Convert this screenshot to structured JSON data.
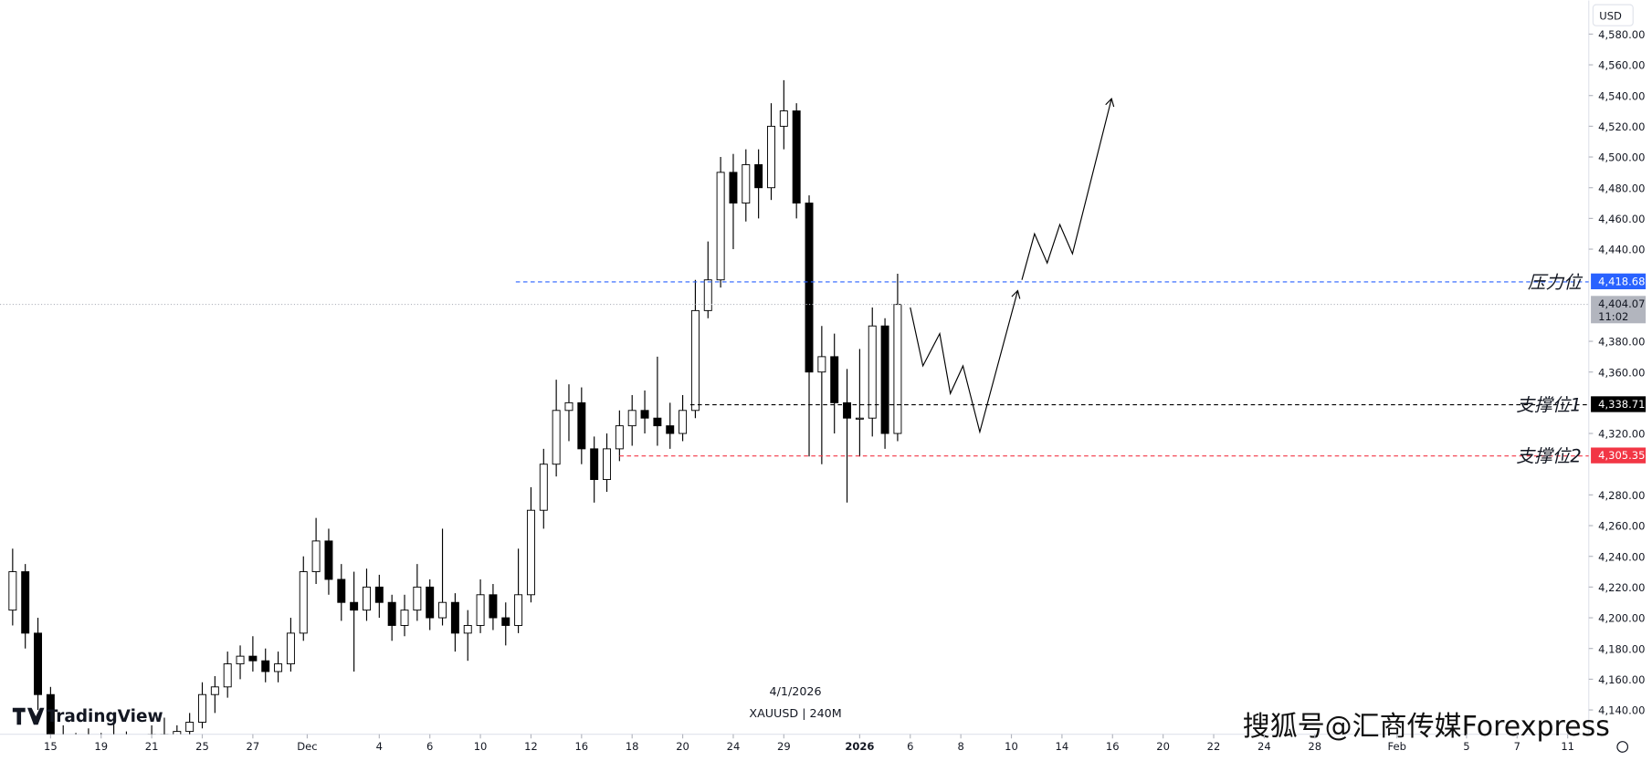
{
  "chart_data": {
    "type": "candlestick",
    "logo": "TradingView",
    "date_label": "4/1/2026",
    "symbol": "XAUUSD | 240M",
    "currency": "USD",
    "watermark": "搜狐号@汇商传媒Forexpress",
    "x": [
      -3,
      -2,
      -1,
      0,
      1,
      2,
      3,
      4,
      5,
      6,
      7,
      8,
      9,
      10,
      11,
      12,
      13,
      14,
      15,
      16,
      17,
      18,
      19,
      20,
      21,
      22,
      23,
      24,
      25,
      26,
      27,
      28,
      29,
      30,
      31,
      32,
      33,
      34,
      35,
      36,
      37,
      38,
      39,
      40,
      41,
      42,
      43,
      44,
      45,
      46,
      47,
      48,
      49,
      50,
      51,
      52,
      53,
      54,
      55,
      56,
      57,
      58,
      59,
      60,
      61,
      62,
      63,
      64,
      65,
      66,
      67
    ],
    "open": [
      4205,
      4230,
      4190,
      4150,
      4120,
      4110,
      4118,
      4112,
      4120,
      4115,
      4108,
      4116,
      4124,
      4118,
      4126,
      4132,
      4150,
      4155,
      4170,
      4175,
      4172,
      4165,
      4170,
      4190,
      4230,
      4250,
      4225,
      4210,
      4205,
      4220,
      4210,
      4195,
      4205,
      4220,
      4200,
      4210,
      4190,
      4195,
      4215,
      4200,
      4195,
      4215,
      4270,
      4300,
      4335,
      4340,
      4310,
      4290,
      4310,
      4325,
      4335,
      4330,
      4325,
      4320,
      4335,
      4400,
      4420,
      4490,
      4470,
      4495,
      4480,
      4520,
      4530,
      4470,
      4360,
      4370,
      4340,
      4330,
      4330,
      4390,
      4320
    ],
    "high": [
      4245,
      4235,
      4200,
      4155,
      4130,
      4125,
      4128,
      4125,
      4132,
      4126,
      4122,
      4130,
      4135,
      4130,
      4138,
      4158,
      4162,
      4178,
      4182,
      4188,
      4180,
      4178,
      4200,
      4240,
      4265,
      4258,
      4235,
      4230,
      4232,
      4228,
      4215,
      4215,
      4235,
      4225,
      4258,
      4216,
      4205,
      4225,
      4222,
      4210,
      4245,
      4285,
      4310,
      4355,
      4352,
      4350,
      4318,
      4320,
      4335,
      4345,
      4348,
      4370,
      4340,
      4345,
      4420,
      4445,
      4500,
      4502,
      4505,
      4505,
      4535,
      4550,
      4535,
      4475,
      4390,
      4385,
      4362,
      4375,
      4402,
      4395,
      4424
    ],
    "low": [
      4195,
      4180,
      4140,
      4110,
      4100,
      4095,
      4105,
      4098,
      4108,
      4100,
      4095,
      4104,
      4110,
      4105,
      4115,
      4128,
      4138,
      4148,
      4160,
      4165,
      4158,
      4158,
      4165,
      4185,
      4222,
      4215,
      4198,
      4165,
      4198,
      4200,
      4185,
      4188,
      4198,
      4192,
      4195,
      4178,
      4172,
      4190,
      4192,
      4182,
      4190,
      4210,
      4258,
      4292,
      4315,
      4300,
      4275,
      4282,
      4302,
      4312,
      4320,
      4312,
      4310,
      4315,
      4330,
      4395,
      4415,
      4440,
      4458,
      4460,
      4472,
      4505,
      4460,
      4305,
      4300,
      4320,
      4275,
      4305,
      4318,
      4310,
      4315
    ],
    "close": [
      4230,
      4190,
      4150,
      4120,
      4110,
      4118,
      4112,
      4120,
      4115,
      4108,
      4116,
      4124,
      4118,
      4126,
      4132,
      4150,
      4155,
      4170,
      4175,
      4172,
      4165,
      4170,
      4190,
      4230,
      4250,
      4225,
      4210,
      4205,
      4220,
      4210,
      4195,
      4205,
      4220,
      4200,
      4210,
      4190,
      4195,
      4215,
      4200,
      4195,
      4215,
      4270,
      4300,
      4335,
      4340,
      4310,
      4290,
      4310,
      4325,
      4335,
      4330,
      4325,
      4320,
      4335,
      4400,
      4420,
      4490,
      4470,
      4495,
      4480,
      4520,
      4530,
      4470,
      4360,
      4370,
      4340,
      4330,
      4330,
      4390,
      4320,
      4404
    ],
    "up_color": "#ffffff",
    "down_color": "#000000",
    "outline_color": "#000000",
    "xlim": [
      -4,
      121.67
    ],
    "xticks": [
      {
        "value": 0,
        "label": "15"
      },
      {
        "value": 4,
        "label": "19"
      },
      {
        "value": 8,
        "label": "21"
      },
      {
        "value": 12,
        "label": "25"
      },
      {
        "value": 16,
        "label": "27"
      },
      {
        "value": 20.3,
        "label": "Dec"
      },
      {
        "value": 26,
        "label": "4"
      },
      {
        "value": 30,
        "label": "6"
      },
      {
        "value": 34,
        "label": "10"
      },
      {
        "value": 38,
        "label": "12"
      },
      {
        "value": 42,
        "label": "16"
      },
      {
        "value": 46,
        "label": "18"
      },
      {
        "value": 50,
        "label": "20"
      },
      {
        "value": 54,
        "label": "24"
      },
      {
        "value": 58,
        "label": "29"
      },
      {
        "value": 64,
        "label": "2026",
        "bold": true
      },
      {
        "value": 68,
        "label": "6"
      },
      {
        "value": 72,
        "label": "8"
      },
      {
        "value": 76,
        "label": "10"
      },
      {
        "value": 80,
        "label": "14"
      },
      {
        "value": 84,
        "label": "16"
      },
      {
        "value": 88,
        "label": "20"
      },
      {
        "value": 92,
        "label": "22"
      },
      {
        "value": 96,
        "label": "24"
      },
      {
        "value": 100,
        "label": "28"
      },
      {
        "value": 106.5,
        "label": "Feb"
      },
      {
        "value": 112,
        "label": "5"
      },
      {
        "value": 116,
        "label": "7"
      },
      {
        "value": 120,
        "label": "11"
      }
    ],
    "ylim": [
      4124.2,
      4601.9
    ],
    "yticks": [
      {
        "value": 4140,
        "label": "4,140.00"
      },
      {
        "value": 4160,
        "label": "4,160.00"
      },
      {
        "value": 4180,
        "label": "4,180.00"
      },
      {
        "value": 4200,
        "label": "4,200.00"
      },
      {
        "value": 4220,
        "label": "4,220.00"
      },
      {
        "value": 4240,
        "label": "4,240.00"
      },
      {
        "value": 4260,
        "label": "4,260.00"
      },
      {
        "value": 4280,
        "label": "4,280.00"
      },
      {
        "value": 4320,
        "label": "4,320.00"
      },
      {
        "value": 4360,
        "label": "4,360.00"
      },
      {
        "value": 4380,
        "label": "4,380.00"
      },
      {
        "value": 4440,
        "label": "4,440.00"
      },
      {
        "value": 4460,
        "label": "4,460.00"
      },
      {
        "value": 4480,
        "label": "4,480.00"
      },
      {
        "value": 4500,
        "label": "4,500.00"
      },
      {
        "value": 4520,
        "label": "4,520.00"
      },
      {
        "value": 4540,
        "label": "4,540.00"
      },
      {
        "value": 4560,
        "label": "4,560.00"
      },
      {
        "value": 4580,
        "label": "4,580.00"
      }
    ],
    "levels": [
      {
        "name": "压力位",
        "value": 4418.68,
        "label": "4,418.68",
        "color": "#2962ff",
        "from": 36.8
      },
      {
        "name": "支撑位1",
        "value": 4338.71,
        "label": "4,338.71",
        "color": "#000000",
        "from": 50.6
      },
      {
        "name": "支撑位2",
        "value": 4305.35,
        "label": "4,305.35",
        "color": "#f23645",
        "from": 45
      }
    ],
    "last_price": {
      "value": 4404.07,
      "label": "4,404.07",
      "time": "11:02",
      "color": "#b2b5be"
    },
    "projection": [
      {
        "x": [
          68,
          69,
          70.33,
          71.17,
          72.17,
          73.5,
          76.5
        ],
        "values": [
          4402,
          4364,
          4385,
          4346,
          4364,
          4321,
          4413
        ]
      },
      {
        "x": [
          76.83,
          77.83,
          78.83,
          79.83,
          80.83,
          83.92
        ],
        "values": [
          4420,
          4450,
          4431,
          4456,
          4437,
          4538
        ]
      }
    ]
  }
}
